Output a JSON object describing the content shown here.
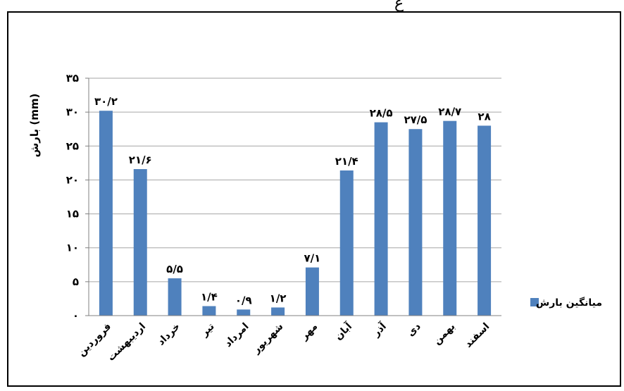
{
  "top_glyph": "ع",
  "chart_data": {
    "type": "bar",
    "categories": [
      "فروردین",
      "اردیبهشت",
      "خرداد",
      "تیر",
      "امرداد",
      "شهریور",
      "مهر",
      "آبان",
      "آذر",
      "دی",
      "بهمن",
      "اسفند"
    ],
    "series": [
      {
        "name": "میانگین بارش",
        "values": [
          30.2,
          21.6,
          5.5,
          1.4,
          0.9,
          1.2,
          7.1,
          21.4,
          28.5,
          27.5,
          28.7,
          28
        ],
        "labels": [
          "۳۰/۲",
          "۲۱/۶",
          "۵/۵",
          "۱/۴",
          "۰/۹",
          "۱/۲",
          "۷/۱",
          "۲۱/۴",
          "۲۸/۵",
          "۲۷/۵",
          "۲۸/۷",
          "۲۸"
        ],
        "color": "#4f81bd"
      }
    ],
    "ylabel": "بارش (mm)",
    "ylim": [
      0,
      35
    ],
    "yticks": [
      0,
      5,
      10,
      15,
      20,
      25,
      30,
      35
    ],
    "ytick_labels": [
      "۰",
      "۵",
      "۱۰",
      "۱۵",
      "۲۰",
      "۲۵",
      "۳۰",
      "۳۵"
    ],
    "grid": true,
    "gridline_color": "#a6a6a6",
    "legend_position": "right"
  }
}
